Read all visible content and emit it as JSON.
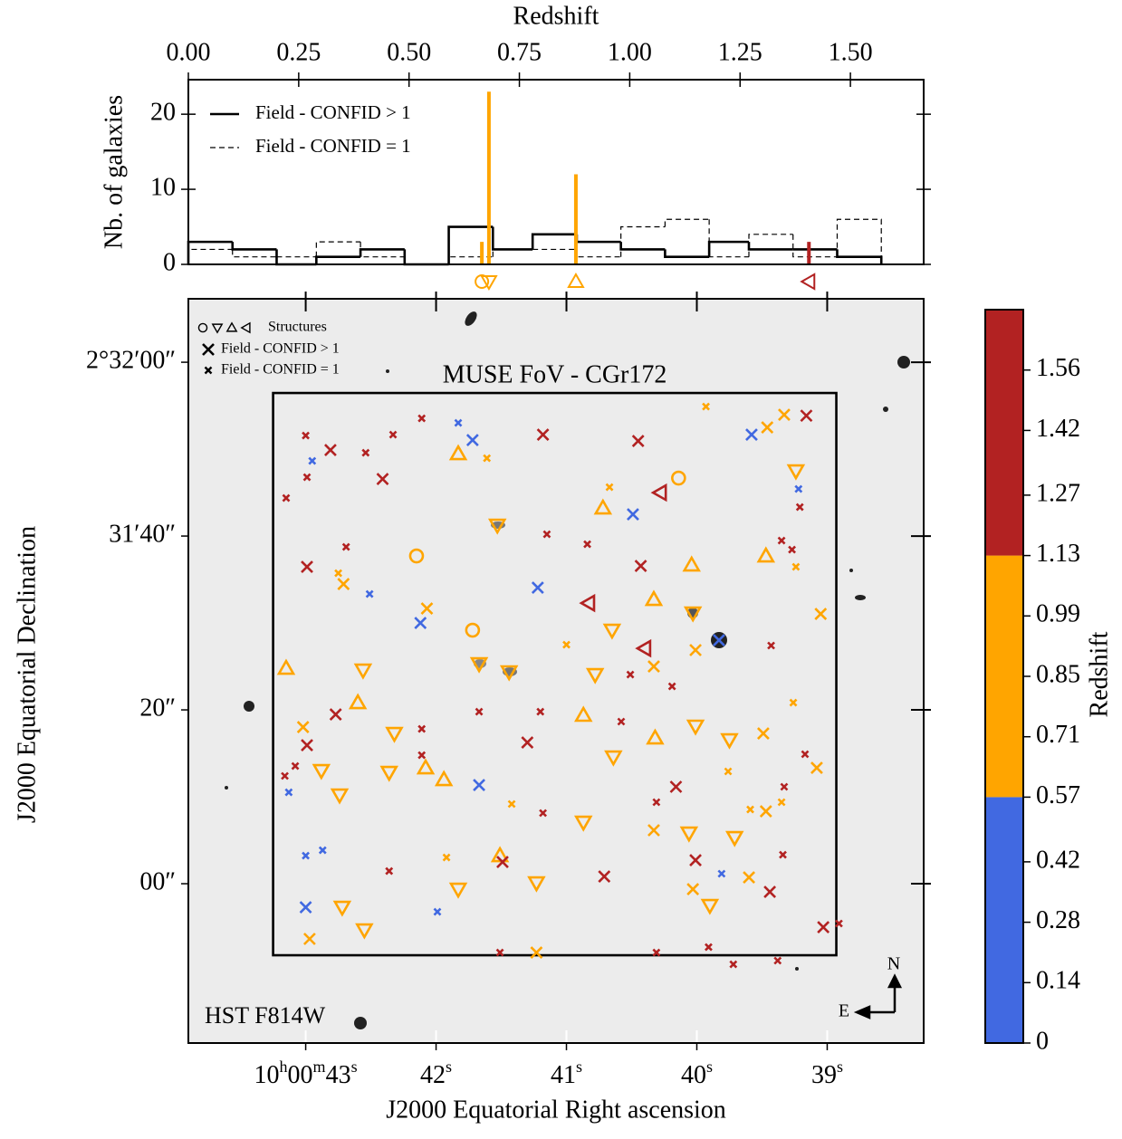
{
  "chart_data": [
    {
      "type": "histogram",
      "xlabel": "Redshift",
      "ylabel": "Nb. of galaxies",
      "xlim": [
        0,
        1.666
      ],
      "ylim": [
        0,
        24.6
      ],
      "xticks": [
        {
          "value": 0,
          "label": "0.00"
        },
        {
          "value": 0.25,
          "label": "0.25"
        },
        {
          "value": 0.5,
          "label": "0.50"
        },
        {
          "value": 0.75,
          "label": "0.75"
        },
        {
          "value": 1,
          "label": "1.00"
        },
        {
          "value": 1.25,
          "label": "1.25"
        },
        {
          "value": 1.5,
          "label": "1.50"
        }
      ],
      "yticks": [
        0,
        10,
        20
      ],
      "bins": [
        0,
        0.1,
        0.2,
        0.29,
        0.39,
        0.49,
        0.59,
        0.69,
        0.78,
        0.88,
        0.98,
        1.08,
        1.18,
        1.27,
        1.37,
        1.47,
        1.57
      ],
      "series": [
        {
          "name": "Field - CONFID > 1",
          "color": "#000000",
          "style": "solid",
          "values": [
            3,
            2,
            0,
            1,
            2,
            0,
            5,
            2,
            4,
            3,
            2,
            1,
            3,
            2,
            2,
            1
          ]
        },
        {
          "name": "Field - CONFID = 1",
          "color": "#000000",
          "style": "dashed",
          "values": [
            2,
            1,
            1,
            3,
            1,
            0,
            1,
            2,
            2,
            1,
            5,
            6,
            1,
            4,
            1,
            6
          ]
        }
      ],
      "legend": "upper left",
      "structures": {
        "x": [
          0.665,
          0.681,
          0.878,
          1.406
        ],
        "heights": [
          3,
          23,
          12,
          3
        ],
        "colors": [
          "#ffa500",
          "#ffa500",
          "#ffa500",
          "#b22222"
        ],
        "markers": [
          "circle",
          "tri-down",
          "tri-up",
          "tri-left"
        ]
      }
    },
    {
      "type": "scatter",
      "xlabel": "J2000 Equatorial Right ascension",
      "ylabel": "J2000 Equatorial Declination",
      "xlim": [
        43.9,
        38.26
      ],
      "ylim": [
        -18.33,
        67.3
      ],
      "xticks": [
        {
          "value": 43,
          "label": "10h00m43s"
        },
        {
          "value": 42,
          "label": "42s"
        },
        {
          "value": 41,
          "label": "41s"
        },
        {
          "value": 40,
          "label": "40s"
        },
        {
          "value": 39,
          "label": "39s"
        }
      ],
      "yticks": [
        {
          "value": 60,
          "label": "2°32′00″"
        },
        {
          "value": 40,
          "label": "31′40″"
        },
        {
          "value": 20,
          "label": "20″"
        },
        {
          "value": 0,
          "label": "00″"
        }
      ],
      "legend": [
        "Structures",
        "Field - CONFID > 1",
        "Field - CONFID = 1"
      ],
      "legend_loc": "upper left",
      "fov": {
        "label": "MUSE FoV - CGr172",
        "x": [
          43.25,
          38.93
        ],
        "y": [
          56.46,
          -8.23
        ]
      },
      "image_label": "HST F814W",
      "compass": [
        "N",
        "E"
      ],
      "groups": [
        {
          "marker": "circle",
          "size": "large",
          "color": "#ffa500",
          "x": [
            40.14,
            42.15,
            41.72
          ],
          "y": [
            46.67,
            37.71,
            29.17
          ]
        },
        {
          "marker": "tri-down",
          "size": "large",
          "color": "#ffa500",
          "x": [
            41.53,
            39.24,
            40.03,
            41.67,
            41.44,
            40.78,
            42.56,
            42.32,
            40.01,
            39.75,
            42.88,
            42.36,
            42.74,
            40.64,
            40.87,
            40.06,
            39.71,
            41.83,
            41.23,
            39.9,
            42.72,
            42.55,
            40.65
          ],
          "y": [
            41.25,
            47.5,
            31.15,
            25.31,
            24.38,
            24.06,
            24.58,
            17.29,
            18.13,
            16.56,
            13.02,
            12.81,
            10.21,
            14.58,
            7.08,
            5.83,
            5.31,
            -0.63,
            0.1,
            -2.5,
            -2.71,
            -5.31,
            29.17
          ]
        },
        {
          "marker": "tri-up",
          "size": "large",
          "color": "#ffa500",
          "x": [
            41.83,
            40.72,
            39.47,
            40.04,
            40.33,
            43.15,
            42.6,
            40.87,
            40.32,
            42.08,
            41.94,
            41.51
          ],
          "y": [
            49.48,
            43.23,
            37.71,
            36.67,
            32.71,
            24.79,
            20.83,
            19.38,
            16.77,
            13.33,
            11.98,
            3.23
          ]
        },
        {
          "marker": "tri-left",
          "size": "large",
          "color": "#b22222",
          "x": [
            40.28,
            40.83,
            40.4
          ],
          "y": [
            45,
            32.29,
            27.08
          ]
        },
        {
          "marker": "x",
          "size": "large",
          "color": "#ffa500",
          "x": [
            39.46,
            39.33,
            39.05,
            42.07,
            42.71,
            43.02,
            40.33,
            40.01,
            39.49,
            39.08,
            39.47,
            40.33,
            40.03,
            39.6,
            41.23,
            42.97
          ],
          "y": [
            52.5,
            53.96,
            31.04,
            31.67,
            34.48,
            18.02,
            25,
            26.88,
            17.29,
            13.33,
            8.33,
            6.15,
            -0.63,
            0.73,
            -7.92,
            -6.35
          ]
        },
        {
          "marker": "x",
          "size": "small",
          "color": "#ffa500",
          "x": [
            39.93,
            41.61,
            40.67,
            42.75,
            39.24,
            41,
            39.26,
            39.76,
            41.42,
            41.92,
            39.59,
            39.35
          ],
          "y": [
            54.9,
            48.96,
            45.63,
            35.73,
            36.46,
            27.5,
            20.83,
            12.92,
            9.17,
            3.02,
            8.54,
            9.38
          ]
        },
        {
          "marker": "x",
          "size": "large",
          "color": "#b22222",
          "x": [
            39.16,
            41.18,
            40.45,
            42.81,
            42.41,
            42.99,
            40.43,
            42.77,
            42.99,
            41.3,
            40.16,
            41.49,
            40.71,
            40.01,
            39.44,
            39.03
          ],
          "y": [
            53.85,
            51.67,
            50.94,
            49.9,
            46.56,
            36.46,
            36.56,
            19.48,
            15.94,
            16.25,
            11.15,
            2.5,
            0.83,
            2.71,
            -0.94,
            -5
          ]
        },
        {
          "marker": "x",
          "size": "small",
          "color": "#b22222",
          "x": [
            42.11,
            43,
            42.33,
            42.54,
            42.99,
            43.15,
            39.21,
            41.15,
            40.84,
            42.69,
            39.35,
            39.27,
            39.43,
            40.51,
            40.19,
            41.67,
            40.58,
            42.11,
            41.2,
            39.17,
            43.08,
            43.16,
            42.11,
            40.31,
            41.18,
            39.33,
            39.34,
            42.36,
            40.31,
            41.51,
            39.91,
            39.72,
            39.38,
            38.91
          ],
          "y": [
            53.54,
            51.56,
            51.67,
            49.58,
            46.77,
            44.38,
            43.33,
            40.21,
            39.06,
            38.75,
            39.48,
            38.44,
            27.4,
            24.06,
            22.71,
            19.79,
            18.65,
            17.81,
            19.79,
            14.9,
            13.54,
            12.4,
            14.79,
            9.38,
            8.13,
            11.15,
            3.33,
            1.46,
            -7.92,
            -7.92,
            -7.29,
            -9.27,
            -8.85,
            -4.58
          ]
        },
        {
          "marker": "x",
          "size": "large",
          "color": "#4169e1",
          "x": [
            41.72,
            39.58,
            40.49,
            41.22,
            42.12,
            39.83,
            41.67,
            43
          ],
          "y": [
            51.04,
            51.67,
            42.5,
            34.06,
            30,
            28.02,
            11.35,
            -2.71
          ]
        },
        {
          "marker": "x",
          "size": "small",
          "color": "#4169e1",
          "x": [
            41.83,
            42.95,
            39.22,
            42.51,
            43.13,
            43,
            42.87,
            39.81,
            41.99
          ],
          "y": [
            53.02,
            48.65,
            45.42,
            33.33,
            10.52,
            3.23,
            3.85,
            1.15,
            -3.23
          ]
        }
      ],
      "colorbar": {
        "label": "Redshift",
        "lim": [
          0,
          1.7
        ],
        "ticks": [
          0,
          0.14,
          0.28,
          0.42,
          0.57,
          0.71,
          0.85,
          0.99,
          1.13,
          1.27,
          1.42,
          1.56
        ],
        "bounds": [
          0,
          0.57,
          1.13,
          1.7
        ],
        "colors": [
          "#4169e1",
          "#ffa500",
          "#b22222"
        ]
      }
    }
  ]
}
